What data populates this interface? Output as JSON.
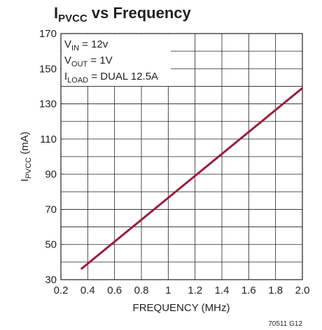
{
  "chart_data": {
    "type": "line",
    "title": {
      "main": "I",
      "sub": "PVCC",
      "rest": " vs Frequency"
    },
    "xlabel": "FREQUENCY (MHz)",
    "ylabel": {
      "main": "I",
      "sub": "PVCC",
      "rest": " (mA)"
    },
    "annotations": [
      {
        "main": "V",
        "sub": "IN",
        "rest": " = 12v"
      },
      {
        "main": "V",
        "sub": "OUT",
        "rest": " = 1V"
      },
      {
        "main": "I",
        "sub": "LOAD",
        "rest": " = DUAL 12.5A"
      }
    ],
    "footnote": "70511 G12",
    "x": [
      0.35,
      2.0
    ],
    "values": [
      36,
      139
    ],
    "color": "#9b1c3c",
    "xlim": [
      0.2,
      2.0
    ],
    "xticks": [
      0.2,
      0.4,
      0.6,
      0.8,
      1,
      1.2,
      1.4,
      1.6,
      1.8,
      {
        "value": 2.0,
        "label": "2.0"
      }
    ],
    "ylim": [
      30,
      170
    ],
    "yticks": [
      30,
      50,
      70,
      90,
      110,
      130,
      150,
      170
    ],
    "ygrid": [
      30,
      40,
      50,
      60,
      70,
      80,
      90,
      100,
      110,
      120,
      130,
      140,
      150,
      160,
      170
    ],
    "grid": true
  }
}
